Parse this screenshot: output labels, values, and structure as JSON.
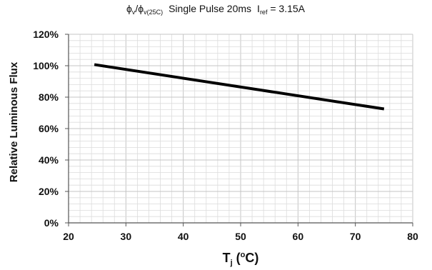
{
  "chart_data": {
    "type": "line",
    "title": {
      "phi1": "ϕ",
      "sub1": "v",
      "slash": "/",
      "phi2": "ϕ",
      "sub2": "v(25C)",
      "pulse": "Single Pulse 20ms",
      "iref": "I",
      "iref_sub": "ref",
      "iref_value": " = 3.15A"
    },
    "ylabel": "Relative Luminous Flux",
    "xlabel": {
      "main": "T",
      "sub": "j",
      "open": " (",
      "sup": "o",
      "unit": "C)"
    },
    "xlim": [
      20,
      80
    ],
    "ylim": [
      0,
      120
    ],
    "x_ticks": [
      20,
      30,
      40,
      50,
      60,
      70,
      80
    ],
    "y_ticks": [
      0,
      20,
      40,
      60,
      80,
      100,
      120
    ],
    "x_tick_labels": [
      "20",
      "30",
      "40",
      "50",
      "60",
      "70",
      "80"
    ],
    "y_tick_labels": [
      "0%",
      "20%",
      "40%",
      "60%",
      "80%",
      "100%",
      "120%"
    ],
    "grid": true,
    "series": [
      {
        "x": [
          24.5,
          75
        ],
        "y": [
          100.7,
          72.5
        ]
      }
    ],
    "colors": {
      "line": "#000000",
      "major_grid": "#c4c4c4",
      "minor_grid": "#dcdcdc",
      "axis": "#555555"
    }
  }
}
